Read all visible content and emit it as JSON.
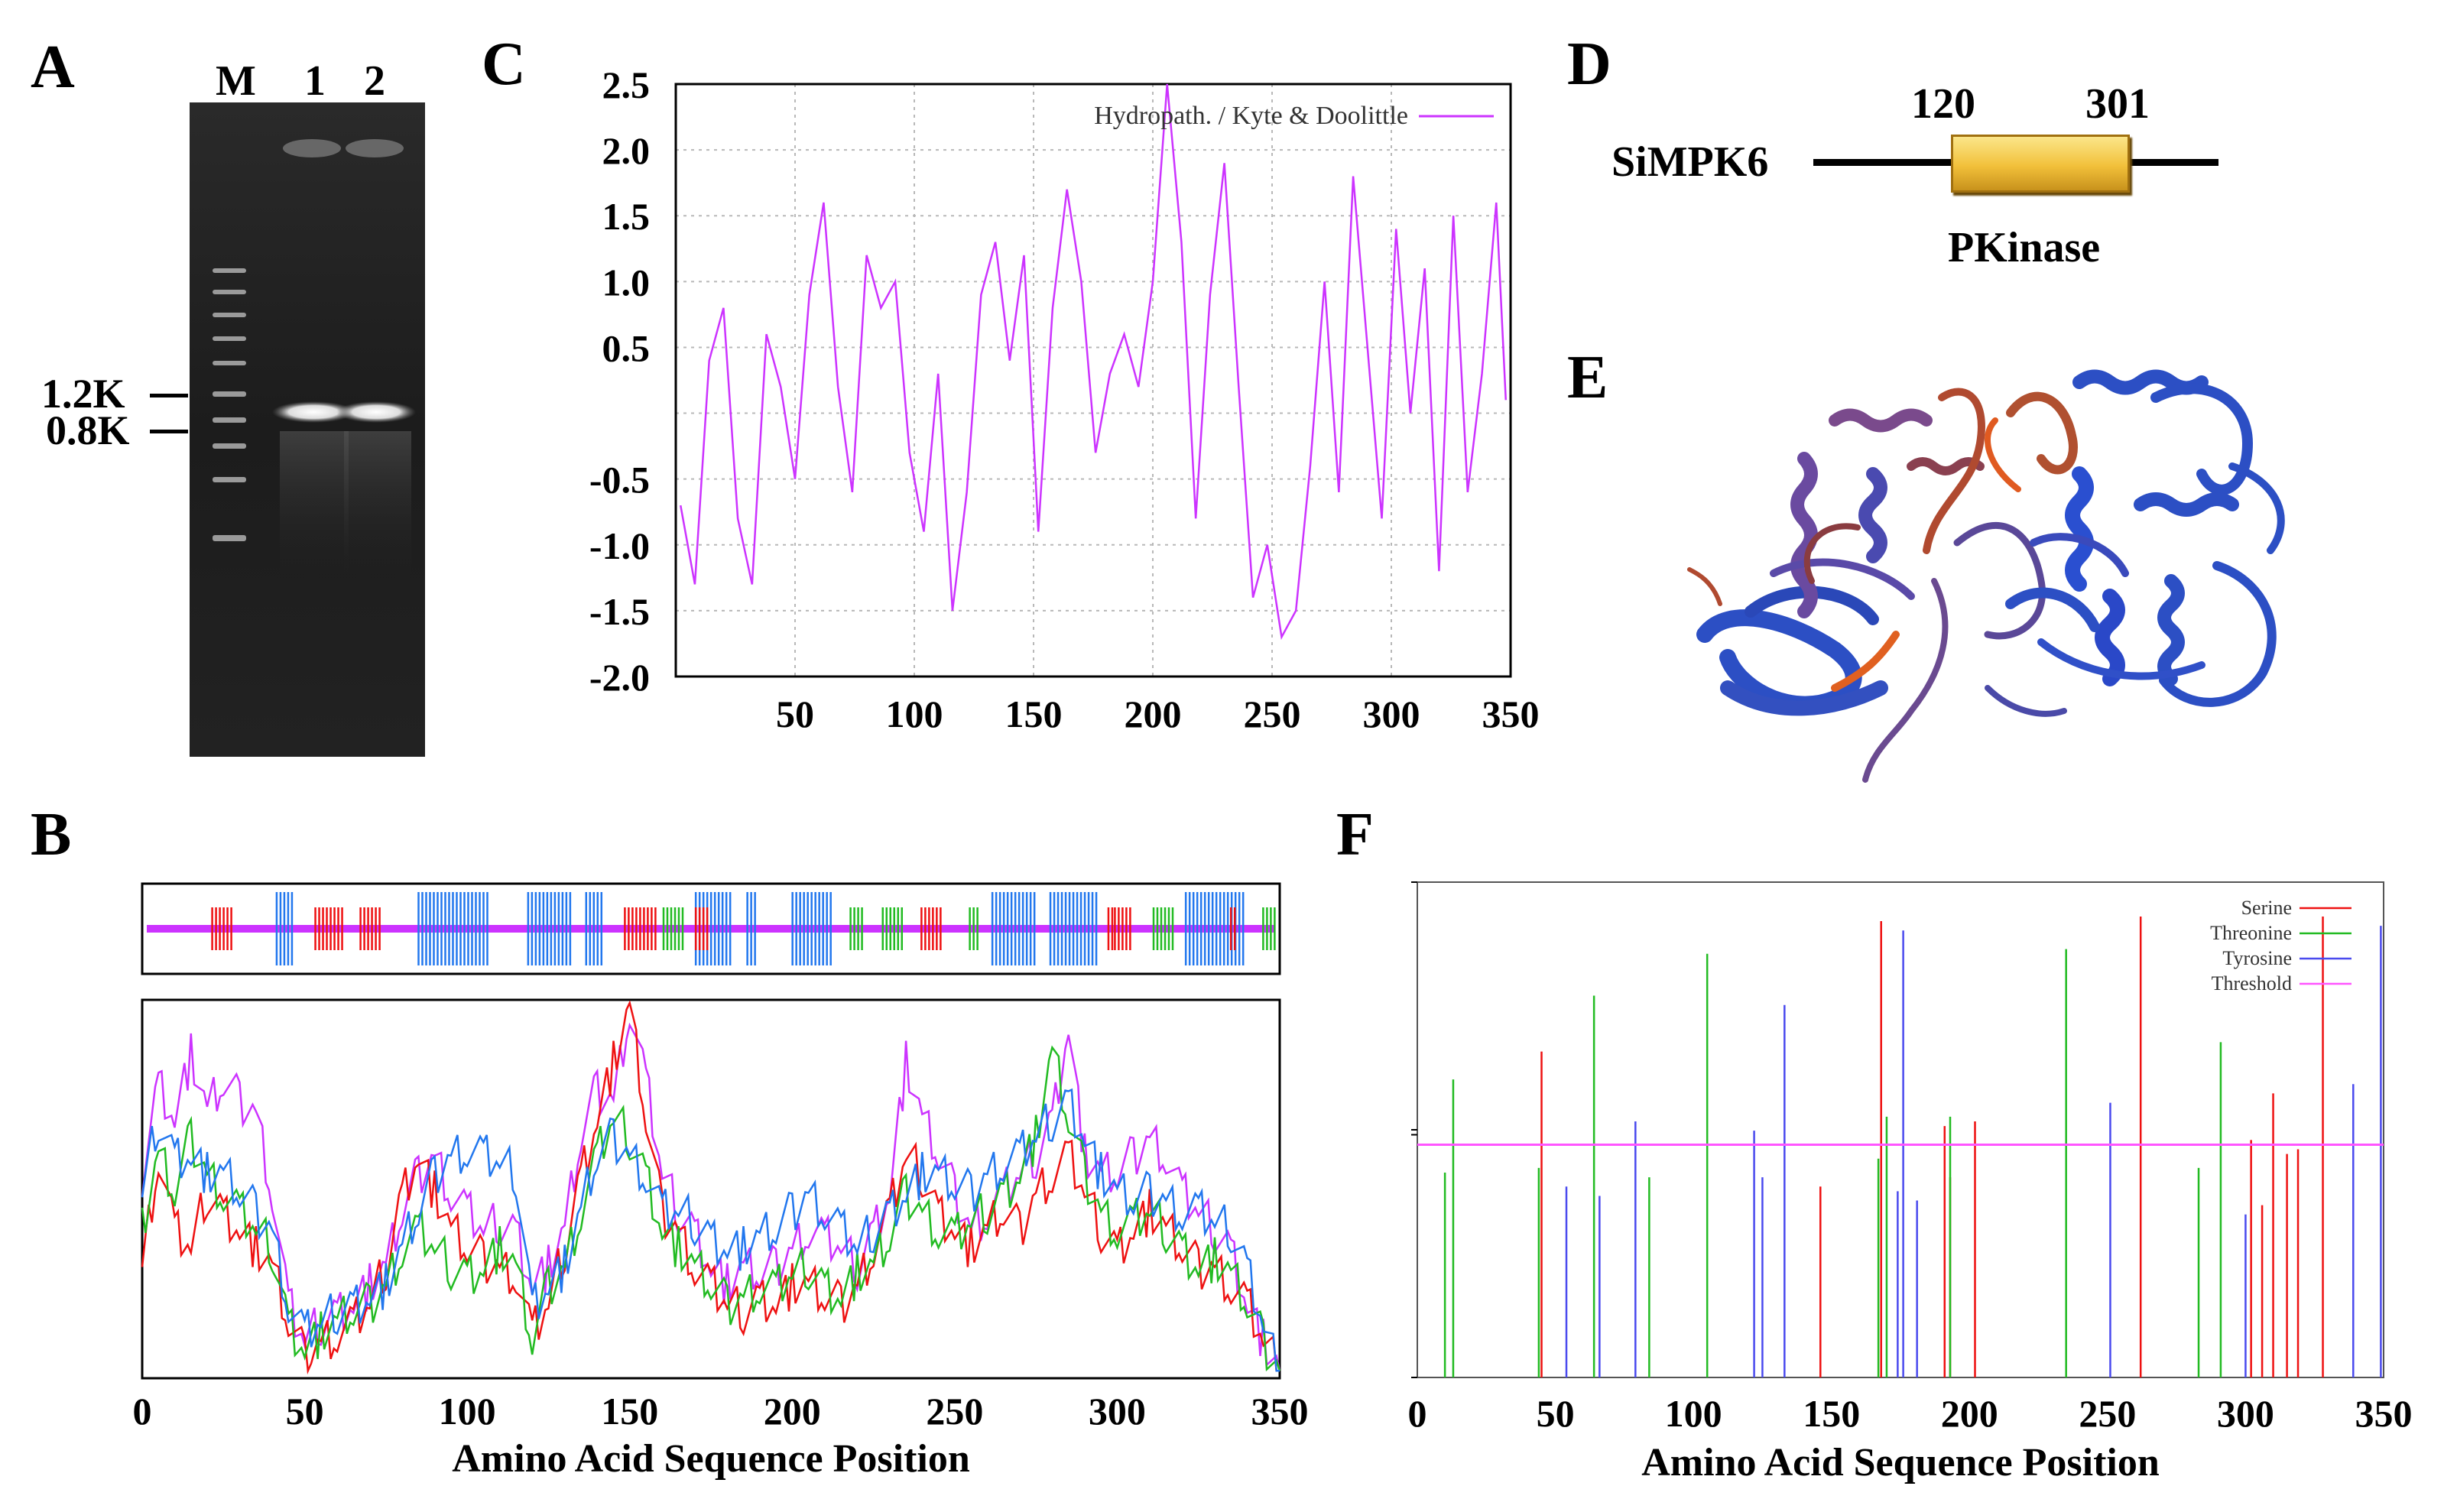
{
  "panel_labels": {
    "a": "A",
    "b": "B",
    "c": "C",
    "d": "D",
    "e": "E",
    "f": "F"
  },
  "gel": {
    "lane_labels": [
      "M",
      "1",
      "2"
    ],
    "markers": [
      "1.2K",
      "0.8K"
    ]
  },
  "colors": {
    "purple": "#cc33ff",
    "red": "#ee1111",
    "green": "#22bb22",
    "blue": "#2277ee",
    "protein_blue": "#2c4fc4",
    "domain_gold": "#f2c03a",
    "tyrosine": "#4a4aee",
    "threshold": "#ff55ff"
  },
  "chart_data": [
    {
      "panel": "C",
      "type": "line",
      "title": "",
      "xlabel": "",
      "ylabel": "",
      "xlim": [
        0,
        350
      ],
      "ylim": [
        -2.0,
        2.5
      ],
      "x_ticks": [
        "50",
        "100",
        "150",
        "200",
        "250",
        "300",
        "350"
      ],
      "y_ticks": [
        "2.5",
        "2.0",
        "1.5",
        "1.0",
        "0.5",
        "-0.5",
        "-1.0",
        "-1.5",
        "-2.0"
      ],
      "grid": true,
      "legend_position": "top-right",
      "series": [
        {
          "name": "Hydropath. / Kyte & Doolittle",
          "x": [
            2,
            8,
            14,
            20,
            26,
            32,
            38,
            44,
            50,
            56,
            62,
            68,
            74,
            80,
            86,
            92,
            98,
            104,
            110,
            116,
            122,
            128,
            134,
            140,
            146,
            152,
            158,
            164,
            170,
            176,
            182,
            188,
            194,
            200,
            206,
            212,
            218,
            224,
            230,
            236,
            242,
            248,
            254,
            260,
            266,
            272,
            278,
            284,
            290,
            296,
            302,
            308,
            314,
            320,
            326,
            332,
            338,
            344,
            348
          ],
          "y": [
            -0.7,
            -1.3,
            0.4,
            0.8,
            -0.8,
            -1.3,
            0.6,
            0.2,
            -0.5,
            0.9,
            1.6,
            0.2,
            -0.6,
            1.2,
            0.8,
            1.0,
            -0.3,
            -0.9,
            0.3,
            -1.5,
            -0.6,
            0.9,
            1.3,
            0.4,
            1.2,
            -0.9,
            0.8,
            1.7,
            1.0,
            -0.3,
            0.3,
            0.6,
            0.2,
            1.0,
            2.5,
            1.3,
            -0.8,
            0.9,
            1.9,
            0.2,
            -1.4,
            -1.0,
            -1.7,
            -1.5,
            -0.4,
            1.0,
            -0.6,
            1.8,
            0.5,
            -0.8,
            1.4,
            0.0,
            1.1,
            -1.2,
            1.5,
            -0.6,
            0.3,
            1.6,
            0.1
          ]
        }
      ]
    },
    {
      "panel": "B",
      "type": "line",
      "title": "",
      "xlabel": "Amino Acid Sequence Position",
      "ylabel": "",
      "xlim": [
        0,
        350
      ],
      "x_ticks": [
        "0",
        "50",
        "100",
        "150",
        "200",
        "250",
        "300",
        "350"
      ],
      "series": [
        {
          "x": [
            0,
            5,
            10,
            15,
            20,
            25,
            30,
            35,
            40,
            45,
            50,
            55,
            60,
            65,
            70,
            75,
            80,
            85,
            90,
            95,
            100,
            105,
            110,
            115,
            120,
            125,
            130,
            135,
            140,
            145,
            150,
            155,
            160,
            165,
            170,
            175,
            180,
            185,
            190,
            195,
            200,
            205,
            210,
            215,
            220,
            225,
            230,
            235,
            240,
            245,
            250,
            255,
            260,
            265,
            270,
            275,
            280,
            285,
            290,
            295,
            300,
            305,
            310,
            315,
            320,
            325,
            330,
            335,
            340,
            345,
            350
          ],
          "y": [
            0.55,
            0.8,
            0.7,
            0.87,
            0.72,
            0.8,
            0.75,
            0.72,
            0.5,
            0.2,
            0.1,
            0.15,
            0.18,
            0.2,
            0.25,
            0.3,
            0.45,
            0.55,
            0.6,
            0.5,
            0.45,
            0.4,
            0.42,
            0.4,
            0.25,
            0.3,
            0.4,
            0.65,
            0.78,
            0.75,
            1.0,
            0.8,
            0.55,
            0.45,
            0.4,
            0.3,
            0.25,
            0.3,
            0.28,
            0.3,
            0.35,
            0.4,
            0.38,
            0.35,
            0.3,
            0.4,
            0.5,
            0.85,
            0.7,
            0.6,
            0.5,
            0.4,
            0.45,
            0.5,
            0.55,
            0.6,
            0.7,
            0.95,
            0.6,
            0.55,
            0.55,
            0.6,
            0.65,
            0.6,
            0.5,
            0.45,
            0.4,
            0.35,
            0.2,
            0.1,
            0.02
          ]
        },
        {
          "x": [
            0,
            5,
            10,
            15,
            20,
            25,
            30,
            35,
            40,
            45,
            50,
            55,
            60,
            65,
            70,
            75,
            80,
            85,
            90,
            95,
            100,
            105,
            110,
            115,
            120,
            125,
            130,
            135,
            140,
            145,
            150,
            155,
            160,
            165,
            170,
            175,
            180,
            185,
            190,
            195,
            200,
            205,
            210,
            215,
            220,
            225,
            230,
            235,
            240,
            245,
            250,
            255,
            260,
            265,
            270,
            275,
            280,
            285,
            290,
            295,
            300,
            305,
            310,
            315,
            320,
            325,
            330,
            335,
            340,
            345,
            350
          ],
          "y": [
            0.3,
            0.6,
            0.4,
            0.35,
            0.5,
            0.45,
            0.4,
            0.35,
            0.3,
            0.15,
            0.06,
            0.1,
            0.12,
            0.15,
            0.2,
            0.3,
            0.5,
            0.6,
            0.5,
            0.4,
            0.35,
            0.32,
            0.3,
            0.28,
            0.12,
            0.2,
            0.35,
            0.55,
            0.7,
            0.85,
            1.0,
            0.7,
            0.45,
            0.4,
            0.3,
            0.25,
            0.2,
            0.18,
            0.22,
            0.2,
            0.25,
            0.25,
            0.22,
            0.2,
            0.25,
            0.35,
            0.45,
            0.6,
            0.55,
            0.45,
            0.4,
            0.35,
            0.4,
            0.45,
            0.4,
            0.5,
            0.55,
            0.6,
            0.5,
            0.4,
            0.35,
            0.4,
            0.45,
            0.4,
            0.35,
            0.3,
            0.3,
            0.25,
            0.2,
            0.1,
            0.02
          ]
        },
        {
          "x": [
            0,
            5,
            10,
            15,
            20,
            25,
            30,
            35,
            40,
            45,
            50,
            55,
            60,
            65,
            70,
            75,
            80,
            85,
            90,
            95,
            100,
            105,
            110,
            115,
            120,
            125,
            130,
            135,
            140,
            145,
            150,
            155,
            160,
            165,
            170,
            175,
            180,
            185,
            190,
            195,
            200,
            205,
            210,
            215,
            220,
            225,
            230,
            235,
            240,
            245,
            250,
            255,
            260,
            265,
            270,
            275,
            280,
            285,
            290,
            295,
            300,
            305,
            310,
            315,
            320,
            325,
            330,
            335,
            340,
            345,
            350
          ],
          "y": [
            0.4,
            0.6,
            0.5,
            0.65,
            0.55,
            0.5,
            0.45,
            0.4,
            0.35,
            0.15,
            0.08,
            0.12,
            0.15,
            0.18,
            0.2,
            0.25,
            0.35,
            0.4,
            0.35,
            0.3,
            0.28,
            0.3,
            0.35,
            0.3,
            0.1,
            0.25,
            0.3,
            0.45,
            0.6,
            0.7,
            0.65,
            0.55,
            0.4,
            0.35,
            0.3,
            0.25,
            0.2,
            0.22,
            0.25,
            0.24,
            0.28,
            0.3,
            0.25,
            0.22,
            0.28,
            0.3,
            0.38,
            0.5,
            0.45,
            0.4,
            0.38,
            0.42,
            0.45,
            0.5,
            0.55,
            0.65,
            0.88,
            0.7,
            0.55,
            0.45,
            0.4,
            0.42,
            0.45,
            0.4,
            0.35,
            0.3,
            0.32,
            0.28,
            0.2,
            0.1,
            0.02
          ]
        },
        {
          "x": [
            0,
            5,
            10,
            15,
            20,
            25,
            30,
            35,
            40,
            45,
            50,
            55,
            60,
            65,
            70,
            75,
            80,
            85,
            90,
            95,
            100,
            105,
            110,
            115,
            120,
            125,
            130,
            135,
            140,
            145,
            150,
            155,
            160,
            165,
            170,
            175,
            180,
            185,
            190,
            195,
            200,
            205,
            210,
            215,
            220,
            225,
            230,
            235,
            240,
            245,
            250,
            255,
            260,
            265,
            270,
            275,
            280,
            285,
            290,
            295,
            300,
            305,
            310,
            315,
            320,
            325,
            330,
            335,
            340,
            345,
            350
          ],
          "y": [
            0.5,
            0.7,
            0.6,
            0.6,
            0.55,
            0.55,
            0.5,
            0.45,
            0.4,
            0.2,
            0.12,
            0.15,
            0.18,
            0.2,
            0.22,
            0.25,
            0.35,
            0.45,
            0.55,
            0.6,
            0.62,
            0.6,
            0.58,
            0.55,
            0.2,
            0.25,
            0.3,
            0.45,
            0.6,
            0.65,
            0.6,
            0.55,
            0.45,
            0.45,
            0.42,
            0.38,
            0.35,
            0.35,
            0.38,
            0.4,
            0.45,
            0.5,
            0.45,
            0.4,
            0.35,
            0.4,
            0.45,
            0.5,
            0.55,
            0.55,
            0.52,
            0.5,
            0.55,
            0.58,
            0.6,
            0.65,
            0.7,
            0.75,
            0.65,
            0.55,
            0.5,
            0.48,
            0.5,
            0.48,
            0.45,
            0.45,
            0.42,
            0.4,
            0.3,
            0.15,
            0.02
          ]
        }
      ]
    },
    {
      "panel": "F",
      "type": "bar",
      "title": "",
      "xlabel": "Amino Acid Sequence Position",
      "ylabel": "",
      "xlim": [
        0,
        350
      ],
      "ylim": [
        0,
        1.0
      ],
      "x_ticks": [
        "0",
        "50",
        "100",
        "150",
        "200",
        "250",
        "300",
        "350"
      ],
      "threshold": 0.5,
      "legend_position": "top-right",
      "series": [
        {
          "name": "Serine",
          "x": [
            45,
            146,
            168,
            191,
            193,
            202,
            262,
            302,
            306,
            310,
            315,
            319,
            328
          ],
          "y": [
            0.7,
            0.41,
            0.98,
            0.54,
            0.43,
            0.55,
            0.99,
            0.51,
            0.37,
            0.61,
            0.48,
            0.49,
            0.99
          ]
        },
        {
          "name": "Threonine",
          "x": [
            10,
            13,
            44,
            64,
            84,
            105,
            167,
            170,
            193,
            235,
            283,
            291
          ],
          "y": [
            0.44,
            0.64,
            0.45,
            0.82,
            0.43,
            0.91,
            0.47,
            0.56,
            0.56,
            0.92,
            0.45,
            0.72
          ]
        },
        {
          "name": "Tyrosine",
          "x": [
            54,
            66,
            79,
            122,
            125,
            133,
            174,
            176,
            181,
            251,
            300,
            339,
            349
          ],
          "y": [
            0.41,
            0.39,
            0.55,
            0.53,
            0.43,
            0.8,
            0.4,
            0.96,
            0.38,
            0.59,
            0.35,
            0.63,
            0.97
          ]
        }
      ]
    }
  ],
  "domain": {
    "protein_name": "SiMPK6",
    "start_label": "120",
    "end_label": "301",
    "domain_name": "PKinase"
  }
}
